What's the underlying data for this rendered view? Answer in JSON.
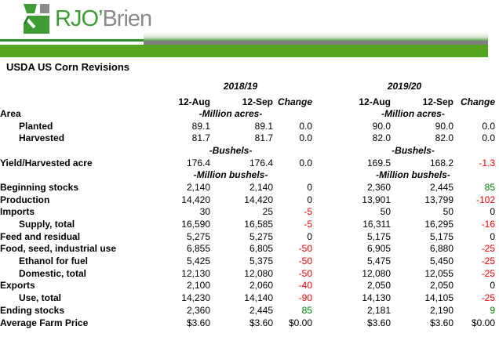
{
  "header": {
    "logo_text_green": "RJO’",
    "logo_text_gray": "Brien",
    "colors": {
      "logo_green": "#3f9c35",
      "logo_gray": "#8a8a8a",
      "underline_green": "#2e8b2e",
      "bar_gray": "#7f7f7f",
      "bar_green": "#55a51e"
    }
  },
  "title": "USDA US Corn Revisions",
  "palette": {
    "negative": "#ff0000",
    "positive": "#008000",
    "text": "#000000"
  },
  "table": {
    "groups": [
      {
        "year": "2018/19"
      },
      {
        "year": "2019/20"
      }
    ],
    "col_headers": [
      "12-Aug",
      "12-Sep",
      "Change"
    ],
    "rows": [
      {
        "type": "units",
        "label": "Area",
        "indent": 0,
        "unit": "-Million acres-"
      },
      {
        "type": "data",
        "label": "Planted",
        "indent": 1,
        "values": [
          "89.1",
          "89.1",
          "0.0",
          "90.0",
          "90.0",
          "0.0"
        ]
      },
      {
        "type": "data",
        "label": "Harvested",
        "indent": 1,
        "values": [
          "81.7",
          "81.7",
          "0.0",
          "82.0",
          "82.0",
          "0.0"
        ]
      },
      {
        "type": "units",
        "label": "",
        "indent": 0,
        "unit": "-Bushels-"
      },
      {
        "type": "data",
        "label": "Yield/Harvested acre",
        "indent": 0,
        "values": [
          "176.4",
          "176.4",
          "0.0",
          "169.5",
          "168.2",
          "-1.3"
        ]
      },
      {
        "type": "units",
        "label": "",
        "indent": 0,
        "unit": "-Million bushels-"
      },
      {
        "type": "data",
        "label": "Beginning stocks",
        "indent": 0,
        "values": [
          "2,140",
          "2,140",
          "0",
          "2,360",
          "2,445",
          "85"
        ]
      },
      {
        "type": "data",
        "label": "Production",
        "indent": 0,
        "values": [
          "14,420",
          "14,420",
          "0",
          "13,901",
          "13,799",
          "-102"
        ]
      },
      {
        "type": "data",
        "label": "Imports",
        "indent": 0,
        "values": [
          "30",
          "25",
          "-5",
          "50",
          "50",
          "0"
        ]
      },
      {
        "type": "data",
        "label": "Supply, total",
        "indent": 1,
        "values": [
          "16,590",
          "16,585",
          "-5",
          "16,311",
          "16,295",
          "-16"
        ]
      },
      {
        "type": "data",
        "label": "Feed and residual",
        "indent": 0,
        "values": [
          "5,275",
          "5,275",
          "0",
          "5,175",
          "5,175",
          "0"
        ]
      },
      {
        "type": "data",
        "label": "Food, seed, industrial use",
        "indent": 0,
        "values": [
          "6,855",
          "6,805",
          "-50",
          "6,905",
          "6,880",
          "-25"
        ]
      },
      {
        "type": "data",
        "label": "Ethanol for fuel",
        "indent": 1,
        "values": [
          "5,425",
          "5,375",
          "-50",
          "5,475",
          "5,450",
          "-25"
        ]
      },
      {
        "type": "data",
        "label": "Domestic, total",
        "indent": 1,
        "values": [
          "12,130",
          "12,080",
          "-50",
          "12,080",
          "12,055",
          "-25"
        ]
      },
      {
        "type": "data",
        "label": "Exports",
        "indent": 0,
        "values": [
          "2,100",
          "2,060",
          "-40",
          "2,050",
          "2,050",
          "0"
        ]
      },
      {
        "type": "data",
        "label": "Use, total",
        "indent": 1,
        "values": [
          "14,230",
          "14,140",
          "-90",
          "14,130",
          "14,105",
          "-25"
        ]
      },
      {
        "type": "data",
        "label": "Ending stocks",
        "indent": 0,
        "values": [
          "2,360",
          "2,445",
          "85",
          "2,181",
          "2,190",
          "9"
        ]
      },
      {
        "type": "data",
        "label": "Average Farm Price",
        "indent": 0,
        "values": [
          "$3.60",
          "$3.60",
          "$0.00",
          "$3.60",
          "$3.60",
          "$0.00"
        ]
      }
    ]
  }
}
